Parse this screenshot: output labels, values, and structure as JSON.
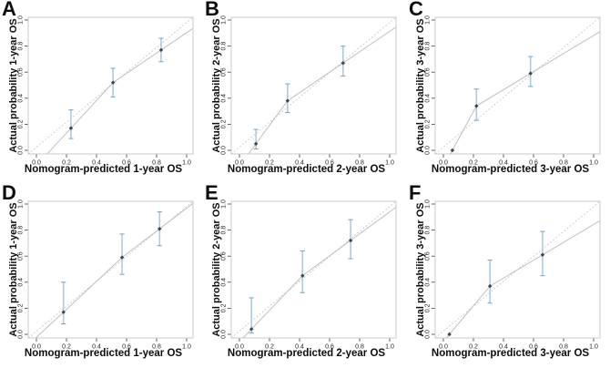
{
  "styles": {
    "background": "#ffffff",
    "box_line": "#c9c9c9",
    "ref_line": "#c5c5c5",
    "cal_line": "#bfbfbf",
    "err_bar": "#aecbdd",
    "err_cap": "#7fa8c6",
    "point": "#3e4347",
    "tick": "#3a3a3a",
    "tick_label": "#1f1f1f",
    "text": "#0d0d0d"
  },
  "chart_data": [
    {
      "panel_label": "A",
      "type": "scatter",
      "xlabel": "Nomogram-predicted 1-year OS",
      "ylabel": "Actual probability 1-year OS",
      "xlim": [
        0,
        1
      ],
      "ylim": [
        0,
        1
      ],
      "xticks": [
        "0.0",
        "0.2",
        "0.4",
        "0.6",
        "0.8",
        "1.0"
      ],
      "yticks": [
        "0.0",
        "0.2",
        "0.4",
        "0.6",
        "0.8",
        "1.0"
      ],
      "reference_line": "ideal y=x dotted diagonal",
      "points": [
        {
          "x": 0.23,
          "y": 0.17,
          "ci": [
            0.09,
            0.31
          ]
        },
        {
          "x": 0.51,
          "y": 0.52,
          "ci": [
            0.41,
            0.63
          ]
        },
        {
          "x": 0.83,
          "y": 0.77,
          "ci": [
            0.68,
            0.86
          ]
        }
      ]
    },
    {
      "panel_label": "B",
      "type": "scatter",
      "xlabel": "Nomogram-predicted 2-year OS",
      "ylabel": "Actual probability 2-year OS",
      "xlim": [
        0,
        1
      ],
      "ylim": [
        0,
        1
      ],
      "xticks": [
        "0.0",
        "0.2",
        "0.4",
        "0.6",
        "0.8",
        "1.0"
      ],
      "yticks": [
        "0.0",
        "0.2",
        "0.4",
        "0.6",
        "0.8",
        "1.0"
      ],
      "reference_line": "ideal y=x dotted diagonal",
      "points": [
        {
          "x": 0.11,
          "y": 0.05,
          "ci": [
            0.01,
            0.16
          ]
        },
        {
          "x": 0.32,
          "y": 0.38,
          "ci": [
            0.29,
            0.51
          ]
        },
        {
          "x": 0.69,
          "y": 0.67,
          "ci": [
            0.57,
            0.8
          ]
        }
      ]
    },
    {
      "panel_label": "C",
      "type": "scatter",
      "xlabel": "Nomogram-predicted 3-year OS",
      "ylabel": "Actual probability 3-year OS",
      "xlim": [
        0,
        1
      ],
      "ylim": [
        0,
        1
      ],
      "xticks": [
        "0.0",
        "0.2",
        "0.4",
        "0.6",
        "0.8",
        "1.0"
      ],
      "yticks": [
        "0.0",
        "0.2",
        "0.4",
        "0.6",
        "0.8",
        "1.0"
      ],
      "reference_line": "ideal y=x dotted diagonal",
      "points": [
        {
          "x": 0.06,
          "y": 0.0,
          "ci": null
        },
        {
          "x": 0.22,
          "y": 0.34,
          "ci": [
            0.23,
            0.47
          ]
        },
        {
          "x": 0.58,
          "y": 0.59,
          "ci": [
            0.49,
            0.72
          ]
        }
      ]
    },
    {
      "panel_label": "D",
      "type": "scatter",
      "xlabel": "Nomogram-predicted 1-year OS",
      "ylabel": "Actual probability 1-year OS",
      "xlim": [
        0,
        1
      ],
      "ylim": [
        0,
        1
      ],
      "xticks": [
        "0.0",
        "0.2",
        "0.4",
        "0.6",
        "0.8",
        "1.0"
      ],
      "yticks": [
        "0.0",
        "0.2",
        "0.4",
        "0.6",
        "0.8",
        "1.0"
      ],
      "reference_line": "ideal y=x dotted diagonal",
      "points": [
        {
          "x": 0.18,
          "y": 0.17,
          "ci": [
            0.08,
            0.4
          ]
        },
        {
          "x": 0.57,
          "y": 0.59,
          "ci": [
            0.46,
            0.77
          ]
        },
        {
          "x": 0.82,
          "y": 0.81,
          "ci": [
            0.68,
            0.94
          ]
        }
      ]
    },
    {
      "panel_label": "E",
      "type": "scatter",
      "xlabel": "Nomogram-predicted 2-year OS",
      "ylabel": "Actual probability 2-year OS",
      "xlim": [
        0,
        1
      ],
      "ylim": [
        0,
        1
      ],
      "xticks": [
        "0.0",
        "0.2",
        "0.4",
        "0.6",
        "0.8",
        "1.0"
      ],
      "yticks": [
        "0.0",
        "0.2",
        "0.4",
        "0.6",
        "0.8",
        "1.0"
      ],
      "reference_line": "ideal y=x dotted diagonal",
      "points": [
        {
          "x": 0.08,
          "y": 0.04,
          "ci": [
            0.01,
            0.28
          ]
        },
        {
          "x": 0.42,
          "y": 0.45,
          "ci": [
            0.32,
            0.64
          ]
        },
        {
          "x": 0.74,
          "y": 0.72,
          "ci": [
            0.58,
            0.88
          ]
        }
      ]
    },
    {
      "panel_label": "F",
      "type": "scatter",
      "xlabel": "Nomogram-predicted 3-year OS",
      "ylabel": "Actual probability 3-year OS",
      "xlim": [
        0,
        1
      ],
      "ylim": [
        0,
        1
      ],
      "xticks": [
        "0.0",
        "0.2",
        "0.4",
        "0.6",
        "0.8",
        "1.0"
      ],
      "yticks": [
        "0.0",
        "0.2",
        "0.4",
        "0.6",
        "0.8",
        "1.0"
      ],
      "reference_line": "ideal y=x dotted diagonal",
      "points": [
        {
          "x": 0.04,
          "y": 0.0,
          "ci": null
        },
        {
          "x": 0.31,
          "y": 0.37,
          "ci": [
            0.24,
            0.57
          ]
        },
        {
          "x": 0.66,
          "y": 0.61,
          "ci": [
            0.45,
            0.79
          ]
        }
      ]
    }
  ]
}
